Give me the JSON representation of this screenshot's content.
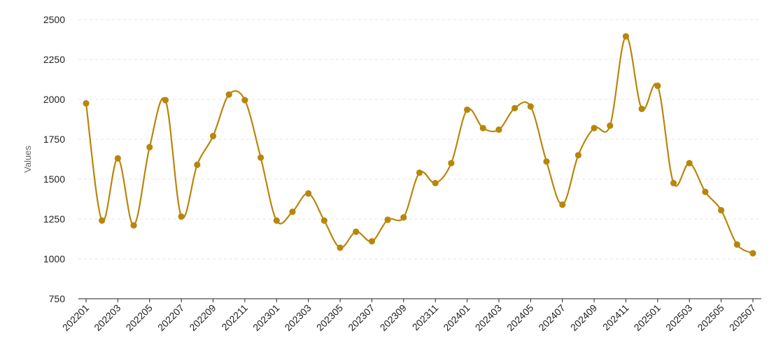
{
  "chart_data": {
    "type": "line",
    "title": "",
    "xlabel": "",
    "ylabel": "Values",
    "ylim": [
      750,
      2500
    ],
    "yticks": [
      750,
      1000,
      1250,
      1500,
      1750,
      2000,
      2250,
      2500
    ],
    "grid": true,
    "smooth": true,
    "color": "#B8860B",
    "categories": [
      "202201",
      "202202",
      "202203",
      "202204",
      "202205",
      "202206",
      "202207",
      "202208",
      "202209",
      "202210",
      "202211",
      "202212",
      "202301",
      "202302",
      "202303",
      "202304",
      "202305",
      "202306",
      "202307",
      "202308",
      "202309",
      "202310",
      "202311",
      "202312",
      "202401",
      "202402",
      "202403",
      "202404",
      "202405",
      "202406",
      "202407",
      "202408",
      "202409",
      "202410",
      "202411",
      "202412",
      "202501",
      "202502",
      "202503",
      "202504",
      "202505",
      "202506",
      "202507"
    ],
    "xtick_labels": [
      "202201",
      "202203",
      "202205",
      "202207",
      "202209",
      "202211",
      "202301",
      "202303",
      "202305",
      "202307",
      "202309",
      "202311",
      "202401",
      "202403",
      "202405",
      "202407",
      "202409",
      "202411",
      "202501",
      "202503",
      "202505",
      "202507"
    ],
    "series": [
      {
        "values": [
          1975,
          1240,
          1630,
          1210,
          1700,
          1995,
          1265,
          1590,
          1770,
          2030,
          1995,
          1635,
          1240,
          1295,
          1410,
          1240,
          1070,
          1170,
          1110,
          1245,
          1260,
          1540,
          1475,
          1600,
          1935,
          1820,
          1810,
          1945,
          1955,
          1610,
          1340,
          1650,
          1820,
          1835,
          2395,
          1940,
          2085,
          1475,
          1600,
          1420,
          1305,
          1090,
          1035
        ]
      }
    ]
  }
}
